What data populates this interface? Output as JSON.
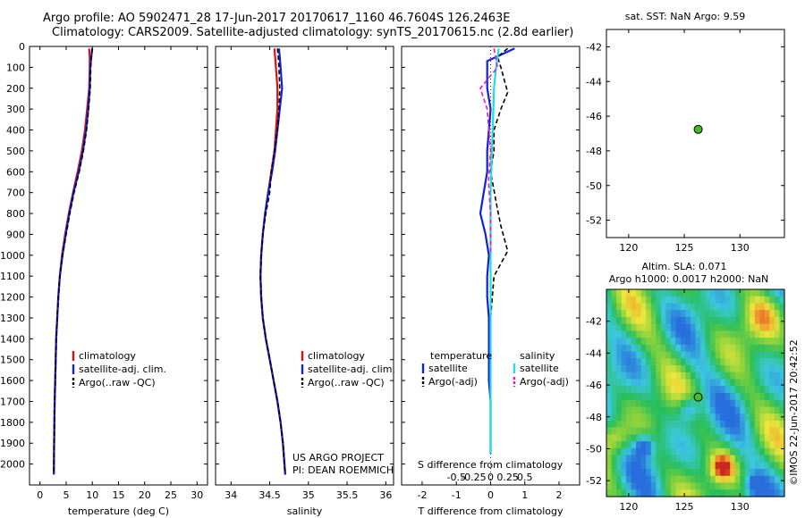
{
  "header": {
    "line1": "Argo profile: AO 5902471_28 17-Jun-2017 20170617_1160 46.7604S 126.2463E",
    "line2": "Climatology: CARS2009. Satellite-adjusted climatology: synTS_20170615.nc (2.8d earlier)"
  },
  "colors": {
    "climatology": "#dd1111",
    "satellite": "#1020e0",
    "argo": "#000000",
    "sal_satellite": "#22dddd",
    "sal_argo": "#ee11dd",
    "marker": "#44bb22"
  },
  "chart_data": [
    {
      "type": "line",
      "id": "temperature",
      "xlabel": "temperature (deg C)",
      "ylabel": "",
      "xlim": [
        -2,
        32
      ],
      "ylim": [
        2100,
        0
      ],
      "xticks": [
        0,
        5,
        10,
        15,
        20,
        25,
        30
      ],
      "yticks": [
        0,
        100,
        200,
        300,
        400,
        500,
        600,
        700,
        800,
        900,
        1000,
        1100,
        1200,
        1300,
        1400,
        1500,
        1600,
        1700,
        1800,
        1900,
        2000
      ],
      "legend": [
        "climatology",
        "satellite-adj. clim.",
        "Argo(..raw -QC)"
      ],
      "series": [
        {
          "name": "climatology",
          "color": "#dd1111",
          "x": [
            9.4,
            9.5,
            9.5,
            9.4,
            9.0,
            8.6,
            8.0,
            7.2,
            6.3,
            5.5,
            4.8,
            4.2,
            3.8,
            3.5,
            3.3,
            3.1,
            3.0,
            2.9,
            2.8,
            2.75,
            2.7,
            2.65
          ],
          "y": [
            10,
            50,
            100,
            200,
            300,
            400,
            500,
            600,
            700,
            800,
            900,
            1000,
            1100,
            1200,
            1300,
            1400,
            1500,
            1600,
            1700,
            1800,
            1900,
            2050
          ]
        },
        {
          "name": "satellite-adj. clim.",
          "color": "#1020e0",
          "x": [
            10.0,
            9.8,
            9.6,
            9.5,
            9.2,
            8.8,
            8.2,
            7.4,
            6.4,
            5.6,
            4.9,
            4.3,
            3.8,
            3.5,
            3.3,
            3.1,
            3.0,
            2.9,
            2.8,
            2.75,
            2.7,
            2.65
          ],
          "y": [
            10,
            50,
            100,
            200,
            300,
            400,
            500,
            600,
            700,
            800,
            900,
            1000,
            1100,
            1200,
            1300,
            1400,
            1500,
            1600,
            1700,
            1800,
            1900,
            2050
          ]
        },
        {
          "name": "Argo(..raw -QC)",
          "color": "#000000",
          "x": [
            10.0,
            9.8,
            9.7,
            9.6,
            9.3,
            8.9,
            8.3,
            7.5,
            6.5,
            5.7,
            5.0,
            4.3,
            3.8,
            3.5,
            3.3,
            3.1,
            3.0,
            2.9,
            2.8,
            2.75,
            2.7,
            2.65
          ],
          "y": [
            10,
            50,
            100,
            200,
            300,
            400,
            500,
            600,
            700,
            800,
            900,
            1000,
            1100,
            1200,
            1300,
            1400,
            1500,
            1600,
            1700,
            1800,
            1900,
            2050
          ]
        }
      ]
    },
    {
      "type": "line",
      "id": "salinity",
      "xlabel": "salinity",
      "xlim": [
        33.8,
        36.1
      ],
      "ylim": [
        2100,
        0
      ],
      "xticks": [
        34,
        34.5,
        35,
        35.5,
        36
      ],
      "legend": [
        "climatology",
        "satellite-adj. clim.",
        "Argo(..raw -QC)"
      ],
      "annotation": [
        "US ARGO PROJECT",
        "PI: DEAN ROEMMICH"
      ],
      "series": [
        {
          "name": "climatology",
          "color": "#dd1111",
          "x": [
            34.56,
            34.57,
            34.58,
            34.6,
            34.6,
            34.58,
            34.56,
            34.52,
            34.48,
            34.44,
            34.41,
            34.39,
            34.38,
            34.39,
            34.41,
            34.45,
            34.5,
            34.55,
            34.6,
            34.64,
            34.67,
            34.7
          ],
          "y": [
            10,
            50,
            100,
            200,
            300,
            400,
            500,
            600,
            700,
            800,
            900,
            1000,
            1100,
            1200,
            1300,
            1400,
            1500,
            1600,
            1700,
            1800,
            1900,
            2050
          ]
        },
        {
          "name": "satellite-adj. clim.",
          "color": "#1020e0",
          "x": [
            34.62,
            34.63,
            34.64,
            34.66,
            34.63,
            34.6,
            34.57,
            34.53,
            34.48,
            34.44,
            34.41,
            34.39,
            34.38,
            34.39,
            34.41,
            34.45,
            34.5,
            34.55,
            34.6,
            34.64,
            34.67,
            34.7
          ],
          "y": [
            10,
            50,
            100,
            200,
            300,
            400,
            500,
            600,
            700,
            800,
            900,
            1000,
            1100,
            1200,
            1300,
            1400,
            1500,
            1600,
            1700,
            1800,
            1900,
            2050
          ]
        },
        {
          "name": "Argo(..raw -QC)",
          "color": "#000000",
          "x": [
            34.6,
            34.61,
            34.62,
            34.63,
            34.62,
            34.6,
            34.56,
            34.52,
            34.5,
            34.45,
            34.41,
            34.39,
            34.38,
            34.39,
            34.41,
            34.45,
            34.5,
            34.55,
            34.6,
            34.64,
            34.67,
            34.7
          ],
          "y": [
            10,
            50,
            100,
            200,
            300,
            400,
            500,
            600,
            700,
            800,
            900,
            1000,
            1100,
            1200,
            1300,
            1400,
            1500,
            1600,
            1700,
            1800,
            1900,
            2050
          ]
        }
      ]
    },
    {
      "type": "line",
      "id": "difference",
      "xlabel": "T difference from climatology",
      "top_label": "S difference from climatology",
      "xlim": [
        -2.6,
        2.6
      ],
      "ylim": [
        2100,
        0
      ],
      "xticks": [
        -2,
        -1,
        0,
        1,
        2
      ],
      "xtick_labels": [
        "-2",
        "-1",
        "0",
        "1",
        "2"
      ],
      "sticks": [
        -0.5,
        -0.25,
        0,
        0.25,
        0.5
      ],
      "stick_labels": [
        "-0.5",
        "-0.25",
        "0",
        "0.25",
        "0.5"
      ],
      "legend_t_title": "temperature",
      "legend_s_title": "salinity",
      "legend_t": [
        "satellite",
        "Argo(-adj)"
      ],
      "legend_s": [
        "satellite",
        "Argo(-adj)"
      ],
      "series": [
        {
          "name": "T satellite",
          "color": "#1020e0",
          "x": [
            0.7,
            0.3,
            -0.1,
            -0.1,
            0.0,
            -0.05,
            -0.1,
            -0.1,
            -0.2,
            -0.3,
            -0.15,
            -0.05,
            -0.1,
            -0.1,
            -0.05,
            -0.05,
            -0.05,
            -0.05,
            0.0,
            0.0,
            0.0
          ],
          "y": [
            10,
            40,
            70,
            200,
            300,
            400,
            500,
            600,
            700,
            800,
            900,
            1000,
            1100,
            1200,
            1300,
            1400,
            1500,
            1600,
            1700,
            1800,
            1950
          ]
        },
        {
          "name": "T Argo(-adj)",
          "color": "#000000",
          "x": [
            0.5,
            0.2,
            0.3,
            0.5,
            0.3,
            0.1,
            0.1,
            0.0,
            0.2,
            0.3,
            0.5,
            0.1,
            0.05,
            0.0,
            0.0,
            0.0,
            0.0
          ],
          "y": [
            10,
            50,
            100,
            220,
            300,
            400,
            500,
            600,
            780,
            860,
            980,
            1100,
            1200,
            1300,
            1500,
            1700,
            1950
          ]
        },
        {
          "name": "S satellite",
          "color": "#22dddd",
          "x": [
            0.12,
            0.08,
            0.05,
            0.04,
            0.03,
            0.02,
            0.01,
            0.0,
            0.0,
            0.0,
            0.0,
            0.0
          ],
          "y": [
            10,
            100,
            200,
            300,
            400,
            500,
            600,
            700,
            900,
            1100,
            1500,
            1950
          ]
        },
        {
          "name": "S Argo(-adj)",
          "color": "#ee11dd",
          "x": [
            0.05,
            0.1,
            -0.15,
            -0.05,
            0.0,
            -0.03,
            0.0,
            0.0
          ],
          "y": [
            10,
            100,
            200,
            300,
            500,
            650,
            800,
            1000
          ]
        }
      ]
    },
    {
      "type": "scatter",
      "id": "sst_map",
      "title": "sat. SST: NaN Argo: 9.59",
      "xlim": [
        118,
        134
      ],
      "ylim": [
        -53,
        -41
      ],
      "xticks": [
        120,
        125,
        130
      ],
      "yticks": [
        -42,
        -44,
        -46,
        -48,
        -50,
        -52
      ],
      "points": [
        {
          "x": 126.2463,
          "y": -46.7604
        }
      ]
    },
    {
      "type": "heatmap",
      "id": "sla_map",
      "title_line1": "Altim. SLA: 0.071",
      "title_line2": "Argo h1000: 0.0017 h2000: NaN",
      "xlim": [
        118,
        134
      ],
      "ylim": [
        -53,
        -40
      ],
      "xticks": [
        120,
        125,
        130
      ],
      "yticks": [
        -42,
        -44,
        -46,
        -48,
        -50,
        -52
      ],
      "points": [
        {
          "x": 126.2463,
          "y": -46.7604
        }
      ],
      "side_label": "©IMOS 22-Jun-2017 20:42:52"
    }
  ]
}
